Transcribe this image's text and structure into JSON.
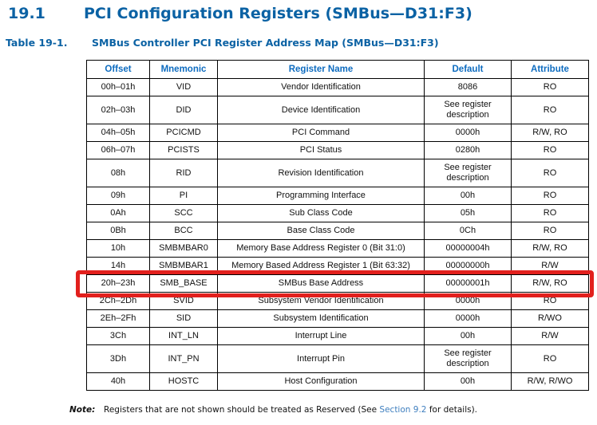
{
  "heading": {
    "number": "19.1",
    "title": "PCI Configuration Registers (SMBus—D31:F3)"
  },
  "caption": {
    "label": "Table 19-1.",
    "text": "SMBus Controller PCI Register Address Map (SMBus—D31:F3)"
  },
  "table": {
    "columns": [
      "Offset",
      "Mnemonic",
      "Register Name",
      "Default",
      "Attribute"
    ],
    "rows": [
      {
        "offset": "00h–01h",
        "mnemonic": "VID",
        "register_name": "Vendor Identification",
        "default": "8086",
        "attribute": "RO",
        "highlighted": false
      },
      {
        "offset": "02h–03h",
        "mnemonic": "DID",
        "register_name": "Device Identification",
        "default": "See register description",
        "attribute": "RO",
        "highlighted": false
      },
      {
        "offset": "04h–05h",
        "mnemonic": "PCICMD",
        "register_name": "PCI Command",
        "default": "0000h",
        "attribute": "R/W, RO",
        "highlighted": false
      },
      {
        "offset": "06h–07h",
        "mnemonic": "PCISTS",
        "register_name": "PCI Status",
        "default": "0280h",
        "attribute": "RO",
        "highlighted": false
      },
      {
        "offset": "08h",
        "mnemonic": "RID",
        "register_name": "Revision Identification",
        "default": "See register description",
        "attribute": "RO",
        "highlighted": false
      },
      {
        "offset": "09h",
        "mnemonic": "PI",
        "register_name": "Programming Interface",
        "default": "00h",
        "attribute": "RO",
        "highlighted": false
      },
      {
        "offset": "0Ah",
        "mnemonic": "SCC",
        "register_name": "Sub Class Code",
        "default": "05h",
        "attribute": "RO",
        "highlighted": false
      },
      {
        "offset": "0Bh",
        "mnemonic": "BCC",
        "register_name": "Base Class Code",
        "default": "0Ch",
        "attribute": "RO",
        "highlighted": false
      },
      {
        "offset": "10h",
        "mnemonic": "SMBMBAR0",
        "register_name": "Memory Base Address Register 0 (Bit 31:0)",
        "default": "00000004h",
        "attribute": "R/W, RO",
        "highlighted": false
      },
      {
        "offset": "14h",
        "mnemonic": "SMBMBAR1",
        "register_name": "Memory Based Address Register 1 (Bit 63:32)",
        "default": "00000000h",
        "attribute": "R/W",
        "highlighted": false
      },
      {
        "offset": "20h–23h",
        "mnemonic": "SMB_BASE",
        "register_name": "SMBus Base Address",
        "default": "00000001h",
        "attribute": "R/W, RO",
        "highlighted": true
      },
      {
        "offset": "2Ch–2Dh",
        "mnemonic": "SVID",
        "register_name": "Subsystem Vendor Identification",
        "default": "0000h",
        "attribute": "RO",
        "highlighted": false
      },
      {
        "offset": "2Eh–2Fh",
        "mnemonic": "SID",
        "register_name": "Subsystem Identification",
        "default": "0000h",
        "attribute": "R/WO",
        "highlighted": false
      },
      {
        "offset": "3Ch",
        "mnemonic": "INT_LN",
        "register_name": "Interrupt Line",
        "default": "00h",
        "attribute": "R/W",
        "highlighted": false
      },
      {
        "offset": "3Dh",
        "mnemonic": "INT_PN",
        "register_name": "Interrupt Pin",
        "default": "See register description",
        "attribute": "RO",
        "highlighted": false
      },
      {
        "offset": "40h",
        "mnemonic": "HOSTC",
        "register_name": "Host Configuration",
        "default": "00h",
        "attribute": "R/W, R/WO",
        "highlighted": false
      }
    ]
  },
  "note": {
    "label": "Note:",
    "text_before_link": "Registers that are not shown should be treated as Reserved (See ",
    "link_text": "Section 9.2",
    "text_after_link": " for details)."
  },
  "colors": {
    "heading_blue": "#0b62a4",
    "table_header_blue": "#0e6cc0",
    "link_blue": "#3f7fbf",
    "highlight_red": "#e2201d",
    "table_border": "#000000"
  }
}
